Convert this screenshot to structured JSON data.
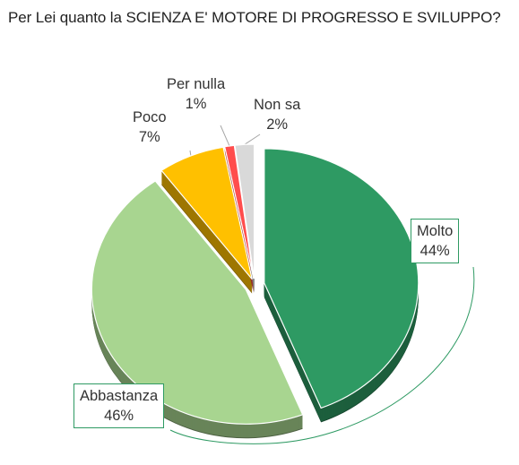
{
  "chart_data": {
    "type": "pie",
    "title": "Per Lei quanto la SCIENZA E' MOTORE DI PROGRESSO E SVILUPPO?",
    "categories": [
      "Molto",
      "Abbastanza",
      "Poco",
      "Per nulla",
      "Non sa"
    ],
    "values": [
      44,
      46,
      7,
      1,
      2
    ],
    "value_labels": [
      "44%",
      "46%",
      "7%",
      "1%",
      "2%"
    ],
    "colors": [
      "#2e9a63",
      "#a8d590",
      "#ffc000",
      "#ff4d4d",
      "#d9d9d9"
    ],
    "legend": "none",
    "style": "3d-exploded"
  }
}
